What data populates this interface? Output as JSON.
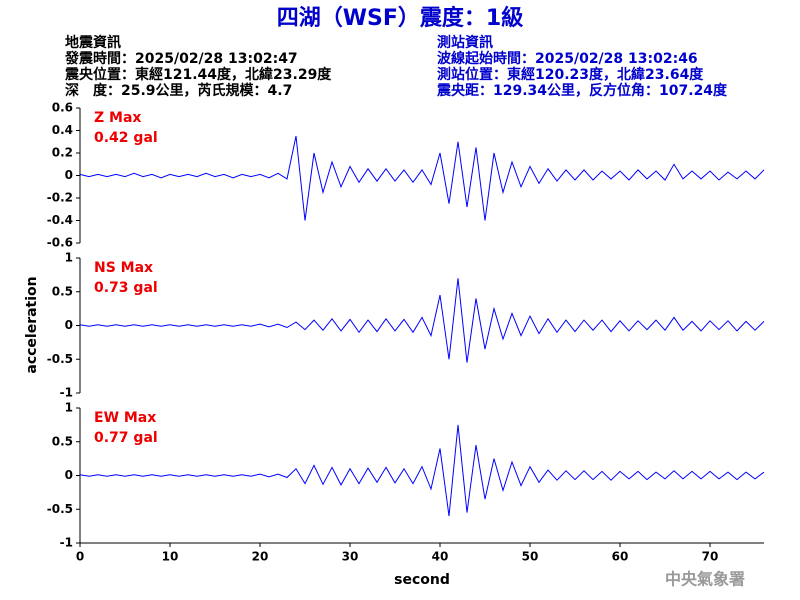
{
  "header": {
    "title": "四湖（WSF）震度：1級",
    "left": [
      "地震資訊",
      "發震時間：2025/02/28 13:02:47",
      "震央位置：東經121.44度，北緯23.29度",
      "深　度：25.9公里，芮氏規模：4.7"
    ],
    "right": [
      "測站資訊",
      "波線起始時間：2025/02/28 13:02:46",
      "測站位置：東經120.23度，北緯23.64度",
      "震央距：129.34公里，反方位角：107.24度"
    ],
    "footer": "中央氣象署"
  },
  "chart_data": [
    {
      "type": "line",
      "annotation": [
        "Z Max",
        "0.42 gal"
      ],
      "color": "#0000ff",
      "xlim": [
        0,
        76
      ],
      "ylim": [
        -0.6,
        0.6
      ],
      "yticks": [
        -0.6,
        -0.4,
        -0.2,
        0,
        0.2,
        0.4,
        0.6
      ],
      "x": [
        0,
        1,
        2,
        3,
        4,
        5,
        6,
        7,
        8,
        9,
        10,
        11,
        12,
        13,
        14,
        15,
        16,
        17,
        18,
        19,
        20,
        21,
        22,
        23,
        24,
        25,
        26,
        27,
        28,
        29,
        30,
        31,
        32,
        33,
        34,
        35,
        36,
        37,
        38,
        39,
        40,
        41,
        42,
        43,
        44,
        45,
        46,
        47,
        48,
        49,
        50,
        51,
        52,
        53,
        54,
        55,
        56,
        57,
        58,
        59,
        60,
        61,
        62,
        63,
        64,
        65,
        66,
        67,
        68,
        69,
        70,
        71,
        72,
        73,
        74,
        75,
        76
      ],
      "values": [
        0.01,
        -0.01,
        0.01,
        -0.01,
        0.01,
        -0.01,
        0.02,
        -0.01,
        0.01,
        -0.02,
        0.01,
        -0.01,
        0.01,
        -0.01,
        0.02,
        -0.01,
        0.01,
        -0.02,
        0.01,
        -0.01,
        0.01,
        -0.02,
        0.02,
        -0.03,
        0.35,
        -0.4,
        0.2,
        -0.15,
        0.12,
        -0.1,
        0.08,
        -0.06,
        0.06,
        -0.05,
        0.06,
        -0.05,
        0.05,
        -0.06,
        0.05,
        -0.08,
        0.2,
        -0.25,
        0.3,
        -0.28,
        0.25,
        -0.4,
        0.2,
        -0.15,
        0.12,
        -0.1,
        0.08,
        -0.07,
        0.06,
        -0.05,
        0.05,
        -0.04,
        0.05,
        -0.04,
        0.04,
        -0.03,
        0.04,
        -0.04,
        0.05,
        -0.03,
        0.04,
        -0.04,
        0.1,
        -0.03,
        0.04,
        -0.03,
        0.04,
        -0.04,
        0.03,
        -0.03,
        0.04,
        -0.03,
        0.05
      ]
    },
    {
      "type": "line",
      "annotation": [
        "NS Max",
        "0.73 gal"
      ],
      "color": "#0000ff",
      "ylabel": "acceleration",
      "xlim": [
        0,
        76
      ],
      "ylim": [
        -1,
        1
      ],
      "yticks": [
        -1,
        -0.5,
        0,
        0.5,
        1
      ],
      "x": [
        0,
        1,
        2,
        3,
        4,
        5,
        6,
        7,
        8,
        9,
        10,
        11,
        12,
        13,
        14,
        15,
        16,
        17,
        18,
        19,
        20,
        21,
        22,
        23,
        24,
        25,
        26,
        27,
        28,
        29,
        30,
        31,
        32,
        33,
        34,
        35,
        36,
        37,
        38,
        39,
        40,
        41,
        42,
        43,
        44,
        45,
        46,
        47,
        48,
        49,
        50,
        51,
        52,
        53,
        54,
        55,
        56,
        57,
        58,
        59,
        60,
        61,
        62,
        63,
        64,
        65,
        66,
        67,
        68,
        69,
        70,
        71,
        72,
        73,
        74,
        75,
        76
      ],
      "values": [
        0.01,
        -0.01,
        0.01,
        -0.01,
        0.01,
        -0.01,
        0.01,
        -0.01,
        0.01,
        -0.01,
        0.01,
        -0.01,
        0.01,
        -0.01,
        0.01,
        -0.01,
        0.01,
        -0.01,
        0.01,
        -0.01,
        0.02,
        -0.02,
        0.02,
        -0.03,
        0.05,
        -0.06,
        0.08,
        -0.07,
        0.1,
        -0.08,
        0.09,
        -0.1,
        0.08,
        -0.09,
        0.1,
        -0.08,
        0.09,
        -0.1,
        0.12,
        -0.15,
        0.45,
        -0.5,
        0.7,
        -0.55,
        0.4,
        -0.35,
        0.25,
        -0.2,
        0.18,
        -0.15,
        0.14,
        -0.12,
        0.1,
        -0.1,
        0.08,
        -0.09,
        0.08,
        -0.07,
        0.08,
        -0.09,
        0.07,
        -0.08,
        0.07,
        -0.06,
        0.08,
        -0.07,
        0.12,
        -0.07,
        0.06,
        -0.08,
        0.07,
        -0.06,
        0.07,
        -0.08,
        0.06,
        -0.07,
        0.06
      ]
    },
    {
      "type": "line",
      "annotation": [
        "EW Max",
        "0.77 gal"
      ],
      "color": "#0000ff",
      "xlabel": "second",
      "xlim": [
        0,
        76
      ],
      "xticks": [
        0,
        10,
        20,
        30,
        40,
        50,
        60,
        70
      ],
      "ylim": [
        -1,
        1
      ],
      "yticks": [
        -1,
        -0.5,
        0,
        0.5,
        1
      ],
      "x": [
        0,
        1,
        2,
        3,
        4,
        5,
        6,
        7,
        8,
        9,
        10,
        11,
        12,
        13,
        14,
        15,
        16,
        17,
        18,
        19,
        20,
        21,
        22,
        23,
        24,
        25,
        26,
        27,
        28,
        29,
        30,
        31,
        32,
        33,
        34,
        35,
        36,
        37,
        38,
        39,
        40,
        41,
        42,
        43,
        44,
        45,
        46,
        47,
        48,
        49,
        50,
        51,
        52,
        53,
        54,
        55,
        56,
        57,
        58,
        59,
        60,
        61,
        62,
        63,
        64,
        65,
        66,
        67,
        68,
        69,
        70,
        71,
        72,
        73,
        74,
        75,
        76
      ],
      "values": [
        0.01,
        -0.01,
        0.01,
        -0.01,
        0.01,
        -0.01,
        0.01,
        -0.01,
        0.01,
        -0.01,
        0.01,
        -0.01,
        0.01,
        -0.01,
        0.01,
        -0.01,
        0.01,
        -0.01,
        0.01,
        -0.01,
        0.02,
        -0.02,
        0.02,
        -0.03,
        0.1,
        -0.12,
        0.15,
        -0.13,
        0.12,
        -0.14,
        0.1,
        -0.12,
        0.11,
        -0.1,
        0.12,
        -0.11,
        0.1,
        -0.12,
        0.13,
        -0.2,
        0.4,
        -0.6,
        0.75,
        -0.55,
        0.45,
        -0.35,
        0.25,
        -0.22,
        0.2,
        -0.15,
        0.13,
        -0.1,
        0.08,
        -0.07,
        0.07,
        -0.06,
        0.07,
        -0.06,
        0.06,
        -0.07,
        0.06,
        -0.05,
        0.06,
        -0.06,
        0.05,
        -0.05,
        0.07,
        -0.05,
        0.06,
        -0.05,
        0.06,
        -0.05,
        0.05,
        -0.06,
        0.05,
        -0.05,
        0.05
      ]
    }
  ]
}
